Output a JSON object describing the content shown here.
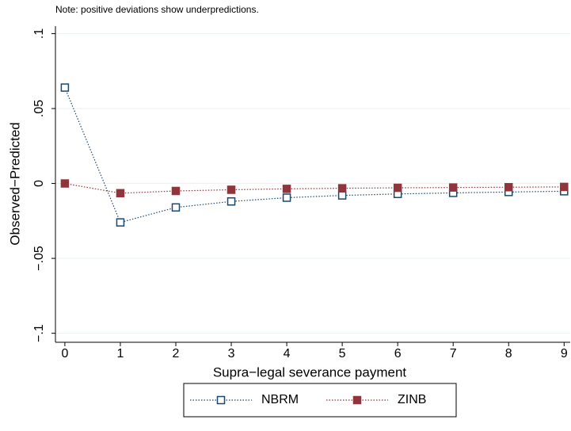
{
  "chart_data": {
    "type": "line",
    "note": "Note: positive deviations show underpredictions.",
    "x_label": "Supra−legal severance payment",
    "y_label": "Observed−Predicted",
    "x": [
      0,
      1,
      2,
      3,
      4,
      5,
      6,
      7,
      8,
      9
    ],
    "series": [
      {
        "name": "NBRM",
        "color": "#1a476f",
        "marker": "hollow-square",
        "values": [
          0.064,
          -0.026,
          -0.016,
          -0.012,
          -0.0095,
          -0.008,
          -0.007,
          -0.0063,
          -0.0057,
          -0.0052
        ]
      },
      {
        "name": "ZINB",
        "color": "#90353b",
        "marker": "filled-square",
        "values": [
          0,
          -0.0065,
          -0.005,
          -0.0042,
          -0.0036,
          -0.0032,
          -0.0029,
          -0.0027,
          -0.0025,
          -0.0023
        ]
      }
    ],
    "xlim": [
      -0.17,
      9.11
    ],
    "xticks": [
      0,
      1,
      2,
      3,
      4,
      5,
      6,
      7,
      8,
      9
    ],
    "ylim": [
      -0.106,
      0.105
    ],
    "yticks": [
      {
        "value": -0.1,
        "label": "−.1"
      },
      {
        "value": -0.05,
        "label": "−.05"
      },
      0,
      {
        "value": 0.05,
        "label": ".05"
      },
      {
        "value": 0.1,
        "label": ".1"
      }
    ],
    "grid": true,
    "line_style": "dotted",
    "legend": "bottom"
  }
}
